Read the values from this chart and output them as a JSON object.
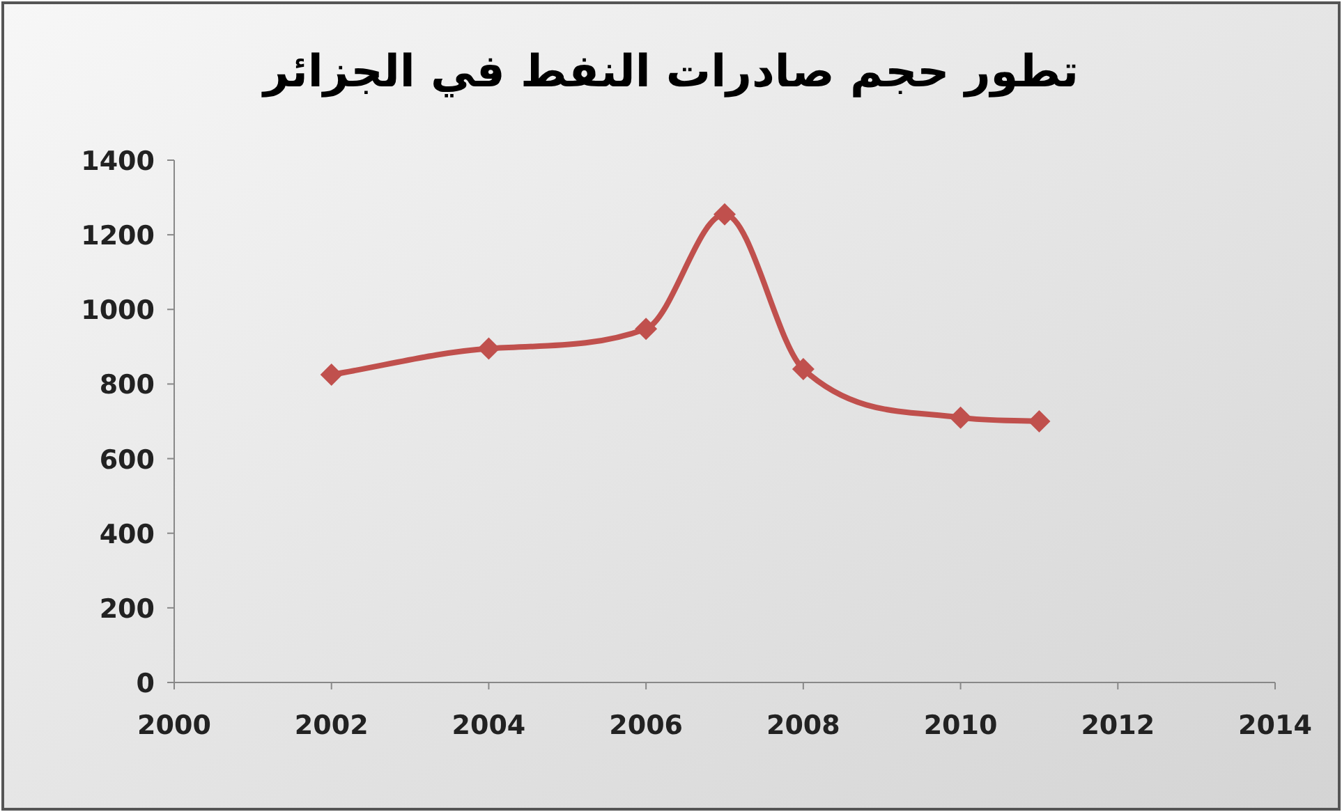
{
  "chart_data": {
    "type": "line",
    "title": "تطور حجم صادرات النفط في الجزائر",
    "x": [
      2002,
      2004,
      2006,
      2007,
      2008,
      2010,
      2011
    ],
    "series": [
      {
        "color": "#c0504d",
        "values": [
          825,
          895,
          948,
          1255,
          840,
          710,
          700
        ]
      }
    ],
    "xlim": [
      2000,
      2014
    ],
    "xticks": [
      2000,
      2002,
      2004,
      2006,
      2008,
      2010,
      2012,
      2014
    ],
    "ylim": [
      0,
      1400
    ],
    "yticks": [
      0,
      200,
      400,
      600,
      800,
      1000,
      1200,
      1400
    ],
    "marker": "diamond",
    "line_style": "solid",
    "grid": false
  }
}
